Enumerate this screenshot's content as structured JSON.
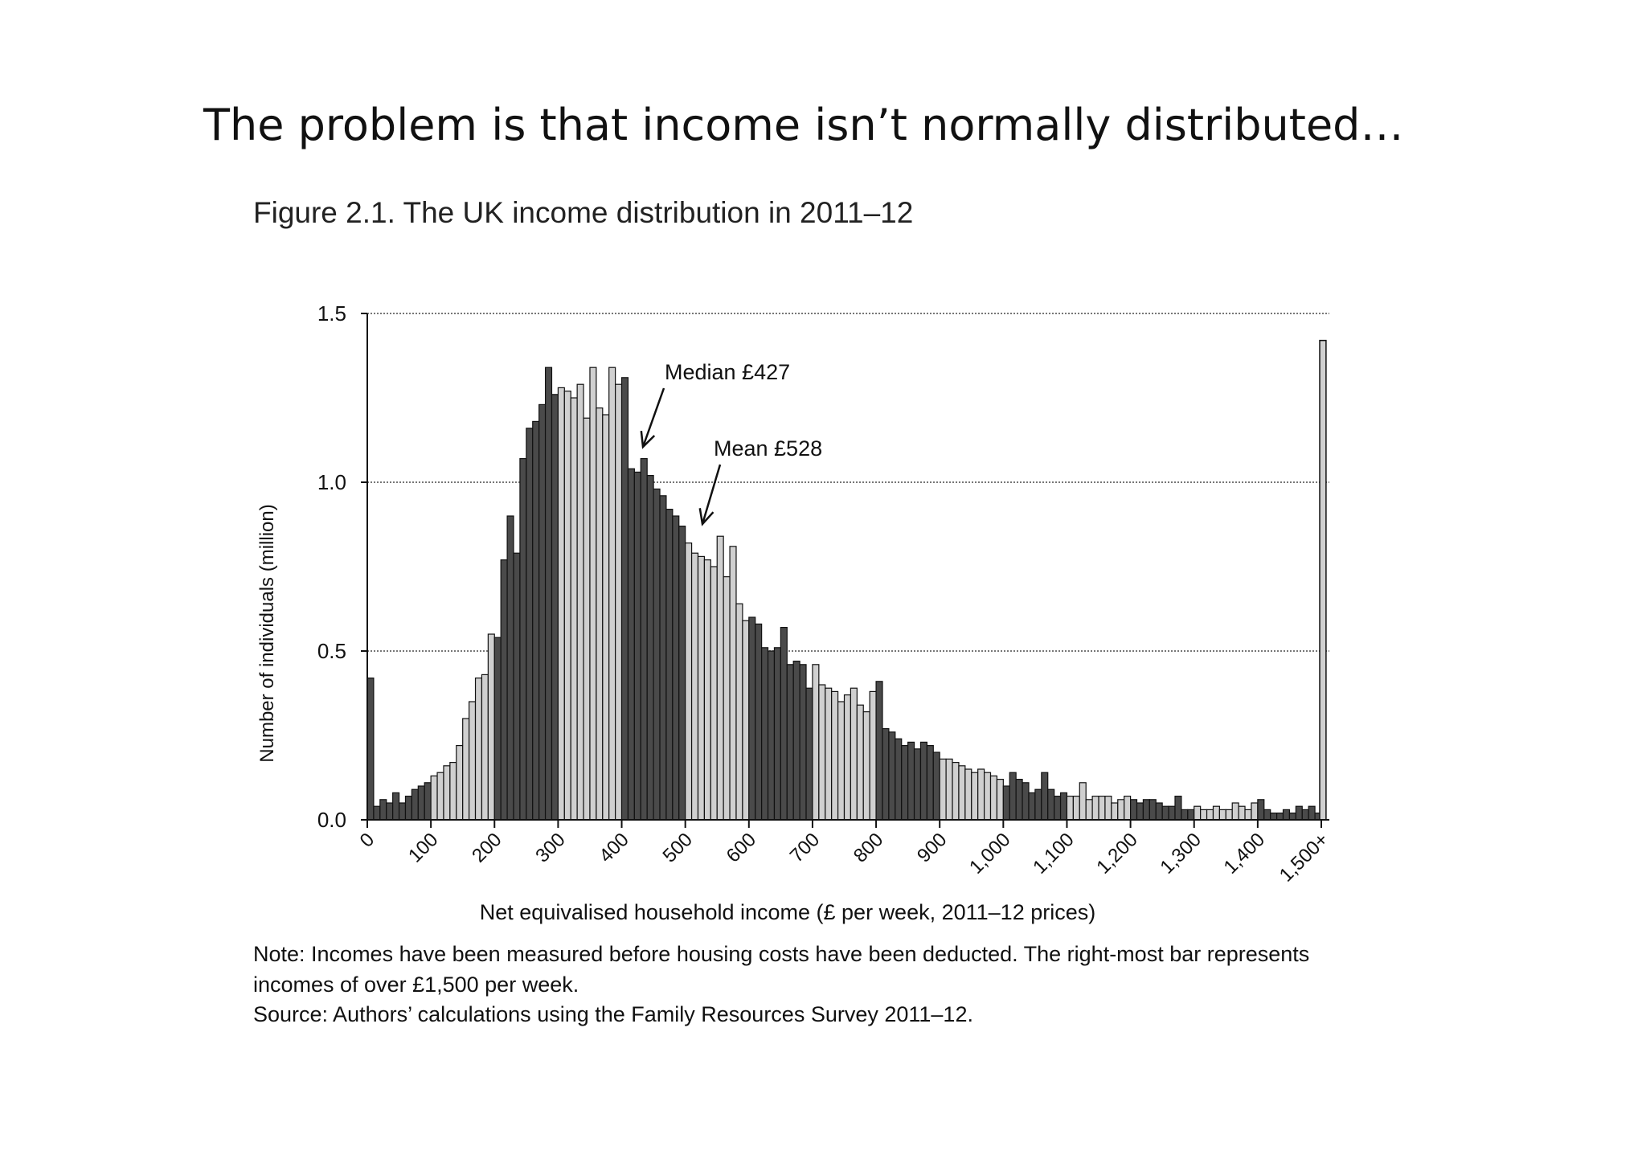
{
  "slide": {
    "title": "The problem is that income isn’t normally distributed…"
  },
  "figure": {
    "title": "Figure 2.1. The UK income distribution in 2011–12",
    "note": "Note: Incomes have been measured before housing costs have been deducted. The right-most bar represents incomes of over £1,500 per week.",
    "source": "Source: Authors’ calculations using the Family Resources Survey 2011–12."
  },
  "chart_data": {
    "type": "bar",
    "title": "Figure 2.1. The UK income distribution in 2011–12",
    "xlabel": "Net equivalised household income (£ per week, 2011–12 prices)",
    "ylabel": "Number of individuals (million)",
    "ylim": [
      0,
      1.5
    ],
    "xlim": [
      0,
      1500
    ],
    "bin_width_gbp": 10,
    "y_ticks": [
      "0.0",
      "0.5",
      "1.0",
      "1.5"
    ],
    "y_tick_values": [
      0,
      0.5,
      1.0,
      1.5
    ],
    "x_ticks": [
      "0",
      "100",
      "200",
      "300",
      "400",
      "500",
      "600",
      "700",
      "800",
      "900",
      "1,000",
      "1,100",
      "1,200",
      "1,300",
      "1,400",
      "1,500+"
    ],
    "x_tick_values": [
      0,
      100,
      200,
      300,
      400,
      500,
      600,
      700,
      800,
      900,
      1000,
      1100,
      1200,
      1300,
      1400,
      1500
    ],
    "grid": "horizontal dotted",
    "bar_colors": {
      "dark": "#4a4a4a",
      "light": "#d0d0d0",
      "outline": "#111111"
    },
    "bins_start": [
      0,
      10,
      20,
      30,
      40,
      50,
      60,
      70,
      80,
      90,
      100,
      110,
      120,
      130,
      140,
      150,
      160,
      170,
      180,
      190,
      200,
      210,
      220,
      230,
      240,
      250,
      260,
      270,
      280,
      290,
      300,
      310,
      320,
      330,
      340,
      350,
      360,
      370,
      380,
      390,
      400,
      410,
      420,
      430,
      440,
      450,
      460,
      470,
      480,
      490,
      500,
      510,
      520,
      530,
      540,
      550,
      560,
      570,
      580,
      590,
      600,
      610,
      620,
      630,
      640,
      650,
      660,
      670,
      680,
      690,
      700,
      710,
      720,
      730,
      740,
      750,
      760,
      770,
      780,
      790,
      800,
      810,
      820,
      830,
      840,
      850,
      860,
      870,
      880,
      890,
      900,
      910,
      920,
      930,
      940,
      950,
      960,
      970,
      980,
      990,
      1000,
      1010,
      1020,
      1030,
      1040,
      1050,
      1060,
      1070,
      1080,
      1090,
      1100,
      1110,
      1120,
      1130,
      1140,
      1150,
      1160,
      1170,
      1180,
      1190,
      1200,
      1210,
      1220,
      1230,
      1240,
      1250,
      1260,
      1270,
      1280,
      1290,
      1300,
      1310,
      1320,
      1330,
      1340,
      1350,
      1360,
      1370,
      1380,
      1390,
      1400,
      1410,
      1420,
      1430,
      1440,
      1450,
      1460,
      1470,
      1480,
      1490
    ],
    "values": [
      0.42,
      0.04,
      0.06,
      0.05,
      0.08,
      0.05,
      0.07,
      0.09,
      0.1,
      0.11,
      0.13,
      0.14,
      0.16,
      0.17,
      0.22,
      0.3,
      0.35,
      0.42,
      0.43,
      0.55,
      0.54,
      0.77,
      0.9,
      0.79,
      1.07,
      1.16,
      1.18,
      1.23,
      1.34,
      1.26,
      1.28,
      1.27,
      1.25,
      1.29,
      1.19,
      1.34,
      1.22,
      1.2,
      1.34,
      1.29,
      1.31,
      1.04,
      1.03,
      1.07,
      1.02,
      0.98,
      0.96,
      0.92,
      0.9,
      0.87,
      0.82,
      0.79,
      0.78,
      0.77,
      0.75,
      0.84,
      0.72,
      0.81,
      0.64,
      0.59,
      0.6,
      0.58,
      0.51,
      0.5,
      0.51,
      0.57,
      0.46,
      0.47,
      0.46,
      0.39,
      0.46,
      0.4,
      0.39,
      0.38,
      0.35,
      0.37,
      0.39,
      0.34,
      0.32,
      0.38,
      0.41,
      0.27,
      0.26,
      0.24,
      0.22,
      0.23,
      0.21,
      0.23,
      0.22,
      0.2,
      0.18,
      0.18,
      0.17,
      0.16,
      0.15,
      0.14,
      0.15,
      0.14,
      0.13,
      0.12,
      0.1,
      0.14,
      0.12,
      0.11,
      0.08,
      0.09,
      0.14,
      0.09,
      0.07,
      0.08,
      0.07,
      0.07,
      0.11,
      0.06,
      0.07,
      0.07,
      0.07,
      0.05,
      0.06,
      0.07,
      0.06,
      0.05,
      0.06,
      0.06,
      0.05,
      0.04,
      0.04,
      0.07,
      0.03,
      0.03,
      0.04,
      0.03,
      0.03,
      0.04,
      0.03,
      0.03,
      0.05,
      0.04,
      0.03,
      0.05,
      0.06,
      0.03,
      0.02,
      0.02,
      0.03,
      0.02,
      0.04,
      0.03,
      0.04,
      0.02,
      0.04,
      0.02,
      0.02,
      0.03,
      0.02,
      0.02
    ],
    "overflow_bar": {
      "label": "1,500+",
      "value": 1.42
    },
    "annotations": [
      {
        "text": "Median £427",
        "x": 427,
        "y": 1.06
      },
      {
        "text": "Mean £528",
        "x": 528,
        "y": 0.86
      }
    ]
  }
}
